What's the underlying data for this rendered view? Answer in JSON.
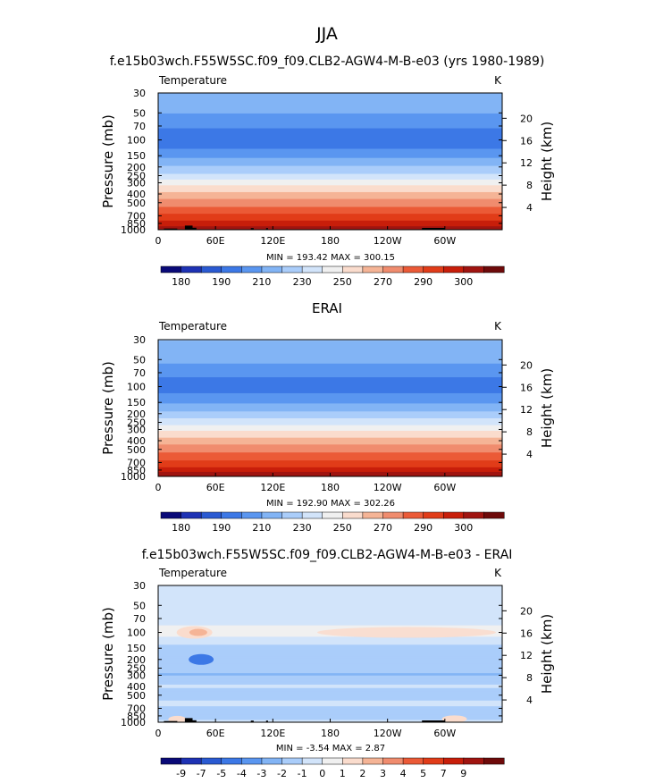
{
  "page": {
    "title": "JJA"
  },
  "chart_data": [
    {
      "type": "heatmap",
      "id": "model",
      "title": "f.e15b03wch.F55W5SC.f09_f09.CLB2-AGW4-M-B-e03 (yrs 1980-1989)",
      "variable": "Temperature",
      "units": "K",
      "xlabel": "",
      "ylabel": "Pressure (mb)",
      "y2label": "Height (km)",
      "x_ticks": [
        "0",
        "60E",
        "120E",
        "180",
        "120W",
        "60W"
      ],
      "x_tick_lon": [
        0,
        60,
        120,
        180,
        240,
        300
      ],
      "x_range_lon": [
        0,
        360
      ],
      "p_ticks": [
        30,
        50,
        70,
        100,
        150,
        200,
        250,
        300,
        400,
        500,
        700,
        850,
        1000
      ],
      "z_ticks": [
        4,
        8,
        12,
        16,
        20
      ],
      "ylim_mb": [
        1000,
        30
      ],
      "bands": [
        {
          "p": 30,
          "v": 215
        },
        {
          "p": 50,
          "v": 210
        },
        {
          "p": 70,
          "v": 203
        },
        {
          "p": 100,
          "v": 196
        },
        {
          "p": 130,
          "v": 203
        },
        {
          "p": 170,
          "v": 212
        },
        {
          "p": 220,
          "v": 222
        },
        {
          "p": 280,
          "v": 234
        },
        {
          "p": 340,
          "v": 244
        },
        {
          "p": 420,
          "v": 254
        },
        {
          "p": 520,
          "v": 262
        },
        {
          "p": 640,
          "v": 271
        },
        {
          "p": 780,
          "v": 280
        },
        {
          "p": 880,
          "v": 287
        },
        {
          "p": 1000,
          "v": 294
        }
      ],
      "stats": "MIN = 193.42  MAX = 300.15",
      "min": 193.42,
      "max": 300.15,
      "colorbar": {
        "labels": [
          "180",
          "190",
          "210",
          "230",
          "250",
          "270",
          "290",
          "300"
        ],
        "colors": [
          "#0a0a78",
          "#1e32b4",
          "#2a5ad2",
          "#3c78e6",
          "#5a96f0",
          "#82b4f5",
          "#aacdfa",
          "#d2e4fa",
          "#f0f0f0",
          "#fadccd",
          "#f5b496",
          "#f08c6e",
          "#eb5a37",
          "#e13c19",
          "#c81e0a",
          "#a01410",
          "#6e0a0a"
        ]
      }
    },
    {
      "type": "heatmap",
      "id": "erai",
      "title": "ERAI",
      "variable": "Temperature",
      "units": "K",
      "xlabel": "",
      "ylabel": "Pressure (mb)",
      "y2label": "Height (km)",
      "x_ticks": [
        "0",
        "60E",
        "120E",
        "180",
        "120W",
        "60W"
      ],
      "x_tick_lon": [
        0,
        60,
        120,
        180,
        240,
        300
      ],
      "x_range_lon": [
        0,
        360
      ],
      "p_ticks": [
        30,
        50,
        70,
        100,
        150,
        200,
        250,
        300,
        400,
        500,
        700,
        850,
        1000
      ],
      "z_ticks": [
        4,
        8,
        12,
        16,
        20
      ],
      "ylim_mb": [
        1000,
        30
      ],
      "bands": [
        {
          "p": 30,
          "v": 218
        },
        {
          "p": 50,
          "v": 212
        },
        {
          "p": 70,
          "v": 204
        },
        {
          "p": 100,
          "v": 197
        },
        {
          "p": 130,
          "v": 204
        },
        {
          "p": 170,
          "v": 213
        },
        {
          "p": 220,
          "v": 224
        },
        {
          "p": 280,
          "v": 236
        },
        {
          "p": 340,
          "v": 246
        },
        {
          "p": 420,
          "v": 255
        },
        {
          "p": 520,
          "v": 263
        },
        {
          "p": 640,
          "v": 272
        },
        {
          "p": 780,
          "v": 281
        },
        {
          "p": 880,
          "v": 288
        },
        {
          "p": 1000,
          "v": 295
        }
      ],
      "stats": "MIN = 192.90  MAX = 302.26",
      "min": 192.9,
      "max": 302.26,
      "colorbar": {
        "labels": [
          "180",
          "190",
          "210",
          "230",
          "250",
          "270",
          "290",
          "300"
        ],
        "colors": [
          "#0a0a78",
          "#1e32b4",
          "#2a5ad2",
          "#3c78e6",
          "#5a96f0",
          "#82b4f5",
          "#aacdfa",
          "#d2e4fa",
          "#f0f0f0",
          "#fadccd",
          "#f5b496",
          "#f08c6e",
          "#eb5a37",
          "#e13c19",
          "#c81e0a",
          "#a01410",
          "#6e0a0a"
        ]
      }
    },
    {
      "type": "heatmap",
      "id": "diff",
      "title": "f.e15b03wch.F55W5SC.f09_f09.CLB2-AGW4-M-B-e03 - ERAI",
      "variable": "Temperature",
      "units": "K",
      "xlabel": "",
      "ylabel": "Pressure (mb)",
      "y2label": "Height (km)",
      "x_ticks": [
        "0",
        "60E",
        "120E",
        "180",
        "120W",
        "60W"
      ],
      "x_tick_lon": [
        0,
        60,
        120,
        180,
        240,
        300
      ],
      "x_range_lon": [
        0,
        360
      ],
      "p_ticks": [
        30,
        50,
        70,
        100,
        150,
        200,
        250,
        300,
        400,
        500,
        700,
        850,
        1000
      ],
      "z_ticks": [
        4,
        8,
        12,
        16,
        20
      ],
      "ylim_mb": [
        1000,
        30
      ],
      "bands": [
        {
          "p": 30,
          "v": -1.5
        },
        {
          "p": 70,
          "v": -1.5
        },
        {
          "p": 100,
          "v": 0.4
        },
        {
          "p": 125,
          "v": -1.5
        },
        {
          "p": 180,
          "v": -2.5
        },
        {
          "p": 300,
          "v": -3.0
        },
        {
          "p": 400,
          "v": -1.5
        },
        {
          "p": 480,
          "v": -2.5
        },
        {
          "p": 620,
          "v": -1.5
        },
        {
          "p": 800,
          "v": -2.5
        },
        {
          "p": 1000,
          "v": -1.5
        }
      ],
      "stats": "MIN =   -3.54  MAX =    2.87",
      "min": -3.54,
      "max": 2.87,
      "colorbar": {
        "labels": [
          "-9",
          "-7",
          "-5",
          "-4",
          "-3",
          "-2",
          "-1",
          "0",
          "1",
          "2",
          "3",
          "4",
          "5",
          "7",
          "9"
        ],
        "colors": [
          "#0a0a78",
          "#1e32b4",
          "#2a5ad2",
          "#3c78e6",
          "#5a96f0",
          "#82b4f5",
          "#aacdfa",
          "#d2e4fa",
          "#f0f0f0",
          "#fadccd",
          "#f5b496",
          "#f08c6e",
          "#eb5a37",
          "#e13c19",
          "#c81e0a",
          "#a01410",
          "#6e0a0a"
        ]
      }
    }
  ]
}
